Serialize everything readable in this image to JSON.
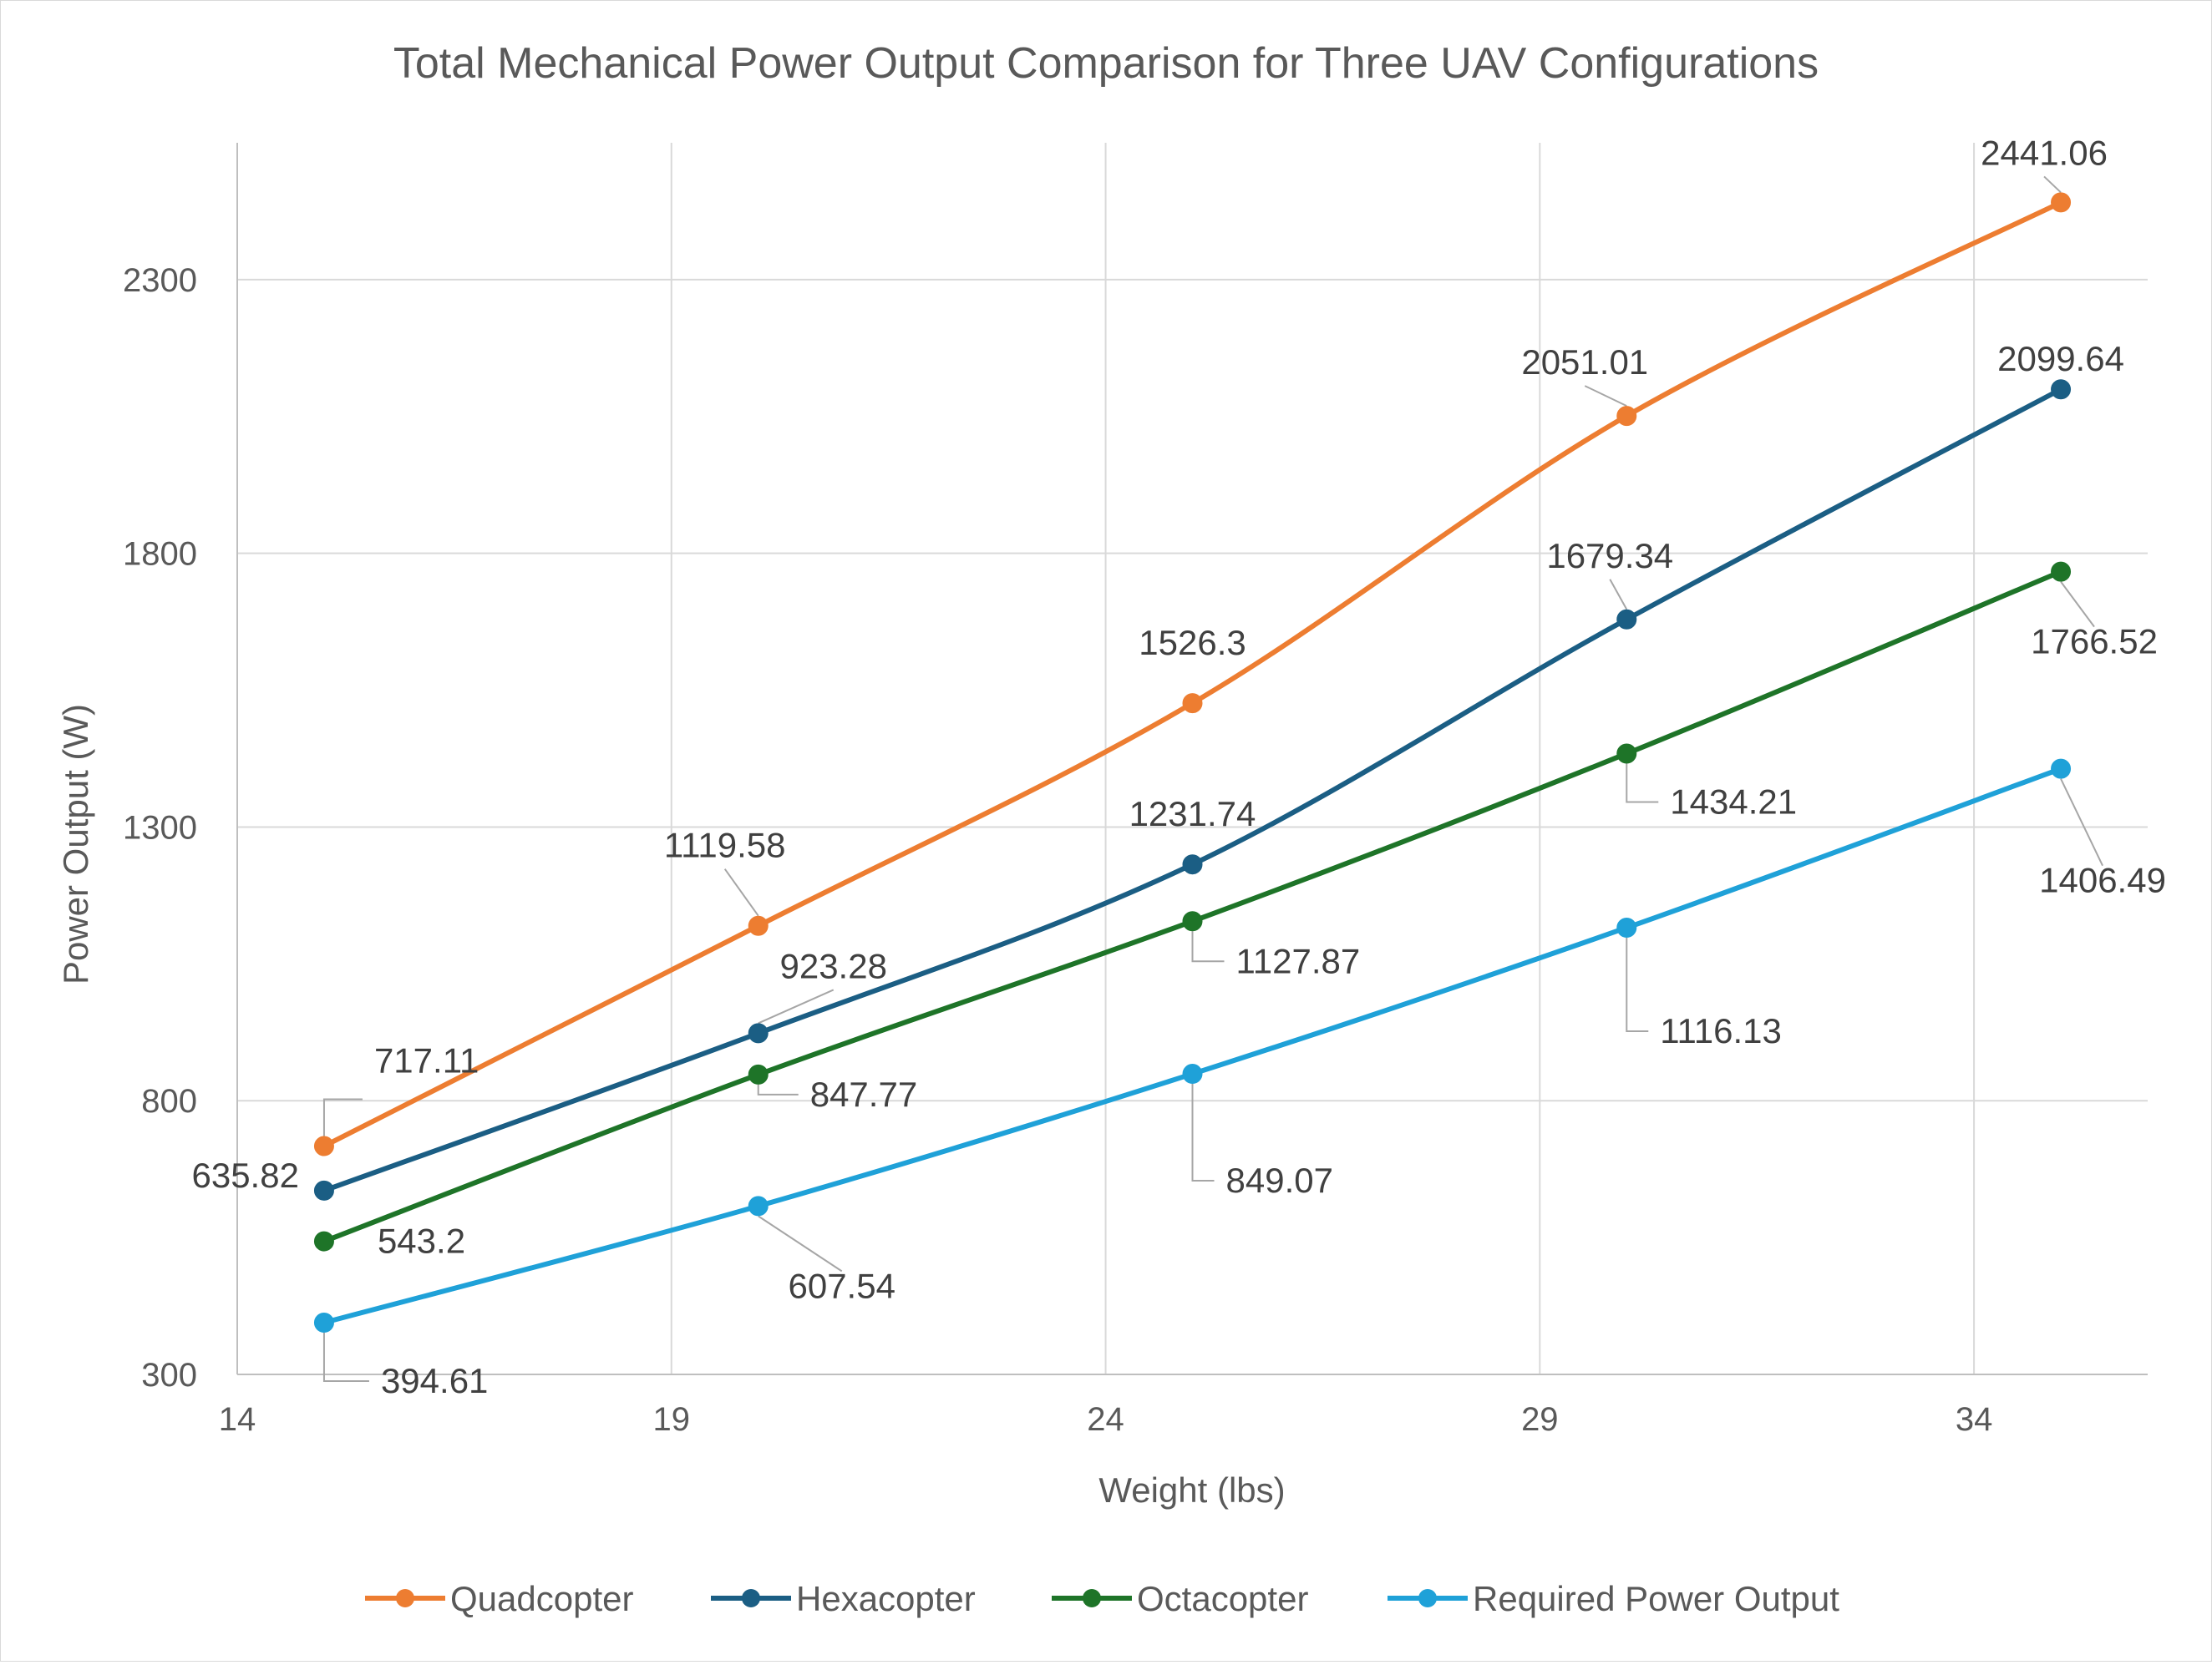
{
  "chart_data": {
    "type": "line",
    "title": "Total Mechanical  Power Output Comparison for Three UAV Configurations",
    "xlabel": "Weight (lbs)",
    "ylabel": "Power Output (W)",
    "xlim": [
      14,
      36
    ],
    "ylim": [
      300,
      2550
    ],
    "x_ticks": [
      14,
      19,
      24,
      29,
      34
    ],
    "y_ticks": [
      300,
      800,
      1300,
      1800,
      2300
    ],
    "x_tick_labels": [
      "14",
      "19",
      "24",
      "29",
      "34"
    ],
    "y_tick_labels": [
      "300",
      "800",
      "1300",
      "1800",
      "2300"
    ],
    "grid": true,
    "legend_position": "bottom",
    "x": [
      15,
      20,
      25,
      30,
      35
    ],
    "series": [
      {
        "name": "Quadcopter",
        "color": "#ED7D31",
        "values": [
          717.11,
          1119.58,
          1526.3,
          2051.01,
          2441.06
        ],
        "labels": [
          "717.11",
          "1119.58",
          "1526.3",
          "2051.01",
          "2441.06"
        ]
      },
      {
        "name": "Hexacopter",
        "color": "#1B5E84",
        "values": [
          635.82,
          923.28,
          1231.74,
          1679.34,
          2099.64
        ],
        "labels": [
          "635.82",
          "923.28",
          "1231.74",
          "1679.34",
          "2099.64"
        ]
      },
      {
        "name": "Octacopter",
        "color": "#1E7428",
        "values": [
          543.2,
          847.77,
          1127.87,
          1434.21,
          1766.52
        ],
        "labels": [
          "543.2",
          "847.77",
          "1127.87",
          "1434.21",
          "1766.52"
        ]
      },
      {
        "name": "Required Power Output",
        "color": "#1FA1D8",
        "values": [
          394.61,
          607.54,
          849.07,
          1116.13,
          1406.49
        ],
        "labels": [
          "394.61",
          "607.54",
          "849.07",
          "1116.13",
          "1406.49"
        ]
      }
    ]
  }
}
